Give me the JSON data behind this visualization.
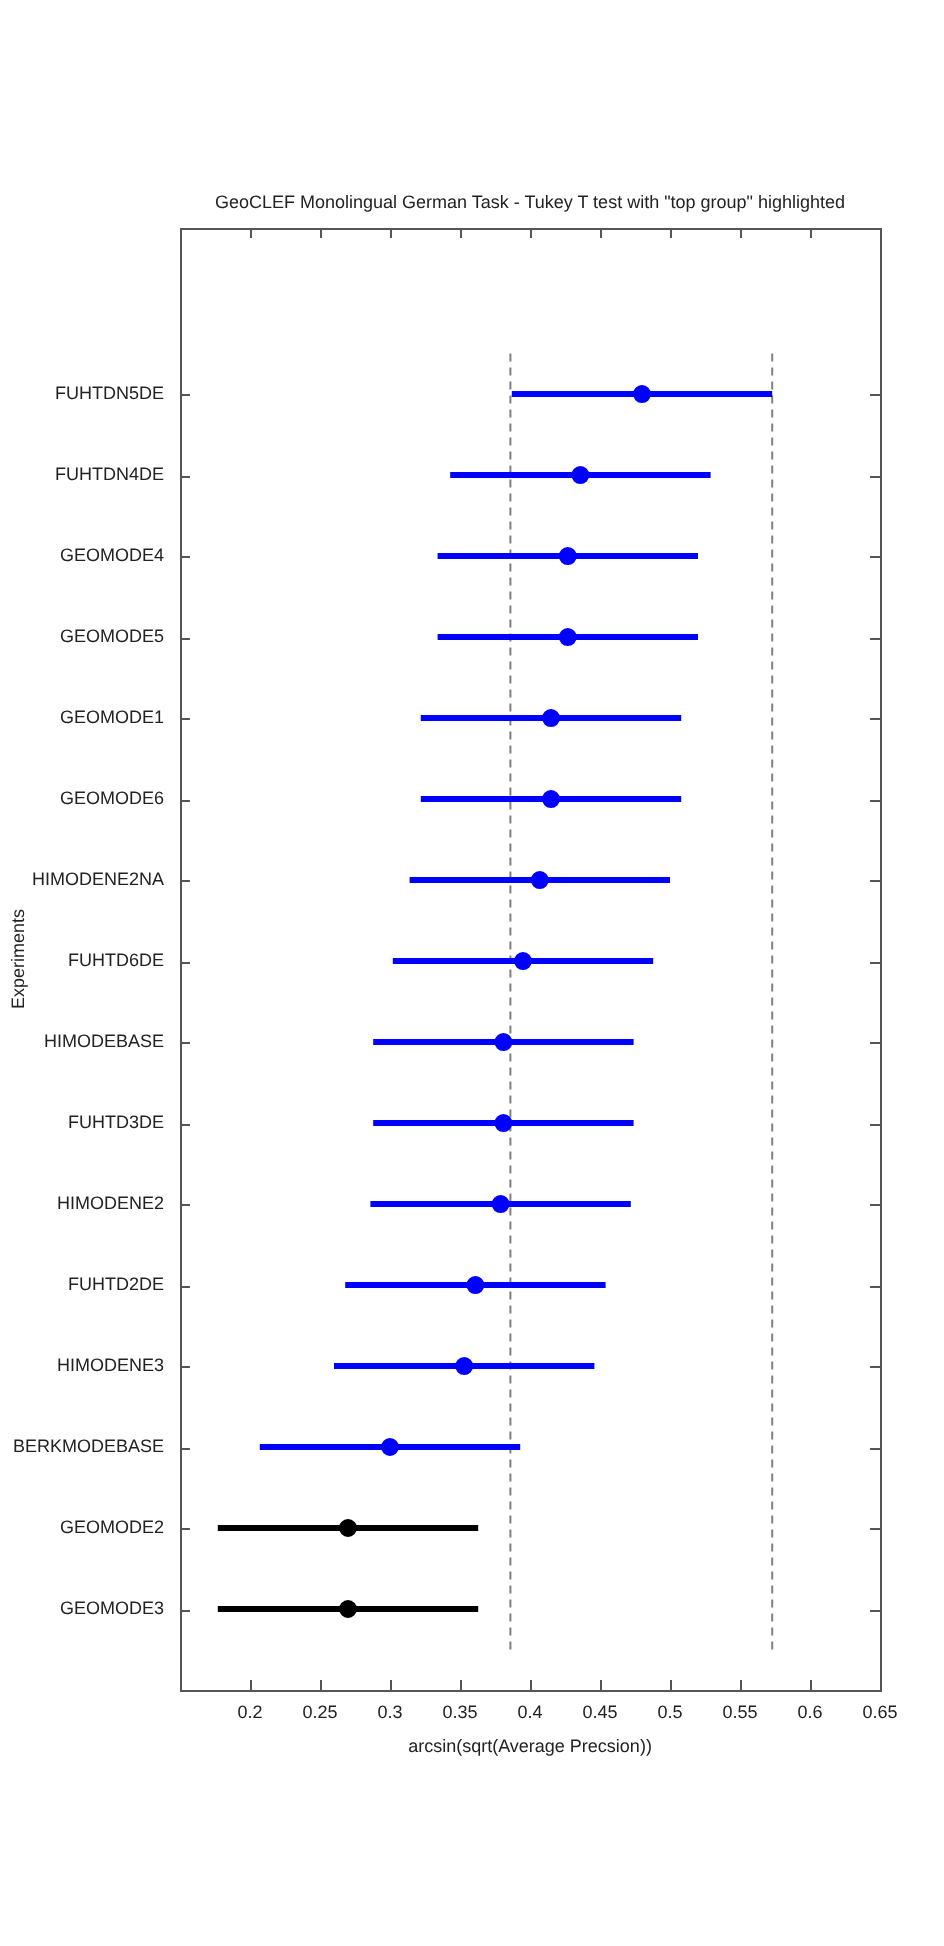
{
  "chart_data": {
    "type": "scatter",
    "orientation": "horizontal",
    "title": "GeoCLEF Monolingual German Task - Tukey T test with \"top group\" highlighted",
    "xlabel": "arcsin(sqrt(Average Precsion))",
    "ylabel": "Experiments",
    "categories": [
      "FUHTDN5DE",
      "FUHTDN4DE",
      "GEOMODE4",
      "GEOMODE5",
      "GEOMODE1",
      "GEOMODE6",
      "HIMODENE2NA",
      "FUHTD6DE",
      "HIMODEBASE",
      "FUHTD3DE",
      "HIMODENE2",
      "FUHTD2DE",
      "HIMODENE3",
      "BERKMODEBASE",
      "GEOMODE2",
      "GEOMODE3"
    ],
    "series": [
      {
        "color": "#0000ff",
        "values": [
          0.48,
          0.436,
          0.427,
          0.427,
          0.415,
          0.415,
          0.407,
          0.395,
          0.381,
          0.381,
          0.379,
          0.361,
          0.353,
          0.3,
          null,
          null
        ],
        "errors": [
          0.093,
          0.093,
          0.093,
          0.093,
          0.093,
          0.093,
          0.093,
          0.093,
          0.093,
          0.093,
          0.093,
          0.093,
          0.093,
          0.093,
          null,
          null
        ]
      },
      {
        "color": "#000000",
        "values": [
          null,
          null,
          null,
          null,
          null,
          null,
          null,
          null,
          null,
          null,
          null,
          null,
          null,
          null,
          0.27,
          0.27
        ],
        "errors": [
          null,
          null,
          null,
          null,
          null,
          null,
          null,
          null,
          null,
          null,
          null,
          null,
          null,
          null,
          0.093,
          0.093
        ]
      }
    ],
    "xlim": [
      0.15,
      0.65
    ],
    "xticks": [
      0.2,
      0.25,
      0.3,
      0.35,
      0.4,
      0.45,
      0.5,
      0.55,
      0.6,
      0.65
    ],
    "ref_lines": [
      {
        "axis": "x",
        "value": 0.386,
        "color": "#808080",
        "line_style": "dashed"
      },
      {
        "axis": "x",
        "value": 0.573,
        "color": "#808080",
        "line_style": "dashed"
      }
    ],
    "marker": "circle",
    "grid": false,
    "legend": false
  }
}
